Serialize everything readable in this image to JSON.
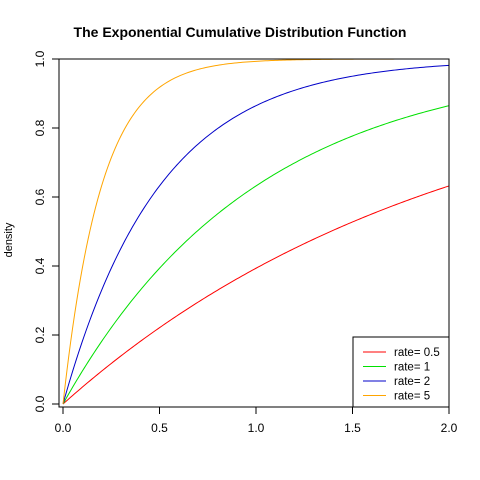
{
  "chart_data": {
    "type": "line",
    "title": "The Exponential Cumulative Distribution Function",
    "xlabel": "",
    "ylabel": "density",
    "xlim": [
      0,
      2.0
    ],
    "ylim": [
      0,
      1.0
    ],
    "x_ticks": [
      "0.0",
      "0.5",
      "1.0",
      "1.5",
      "2.0"
    ],
    "y_ticks": [
      "0.0",
      "0.2",
      "0.4",
      "0.6",
      "0.8",
      "1.0"
    ],
    "legend_position": "bottom-right",
    "series": [
      {
        "name": "rate= 0.5",
        "rate": 0.5,
        "color": "#ff0000",
        "x": [
          0.0,
          0.25,
          0.5,
          0.75,
          1.0,
          1.25,
          1.5,
          1.75,
          2.0
        ],
        "y": [
          0.0,
          0.118,
          0.221,
          0.313,
          0.393,
          0.465,
          0.528,
          0.583,
          0.632
        ]
      },
      {
        "name": "rate= 1",
        "rate": 1,
        "color": "#00e000",
        "x": [
          0.0,
          0.25,
          0.5,
          0.75,
          1.0,
          1.25,
          1.5,
          1.75,
          2.0
        ],
        "y": [
          0.0,
          0.221,
          0.393,
          0.528,
          0.632,
          0.713,
          0.777,
          0.826,
          0.865
        ]
      },
      {
        "name": "rate= 2",
        "rate": 2,
        "color": "#0000c8",
        "x": [
          0.0,
          0.25,
          0.5,
          0.75,
          1.0,
          1.25,
          1.5,
          1.75,
          2.0
        ],
        "y": [
          0.0,
          0.393,
          0.632,
          0.777,
          0.865,
          0.918,
          0.95,
          0.97,
          0.982
        ]
      },
      {
        "name": "rate= 5",
        "rate": 5,
        "color": "#ffa500",
        "x": [
          0.0,
          0.1,
          0.2,
          0.3,
          0.4,
          0.6,
          0.8,
          1.0,
          1.5,
          2.0
        ],
        "y": [
          0.0,
          0.393,
          0.632,
          0.777,
          0.865,
          0.95,
          0.982,
          0.993,
          0.999,
          1.0
        ]
      }
    ]
  }
}
